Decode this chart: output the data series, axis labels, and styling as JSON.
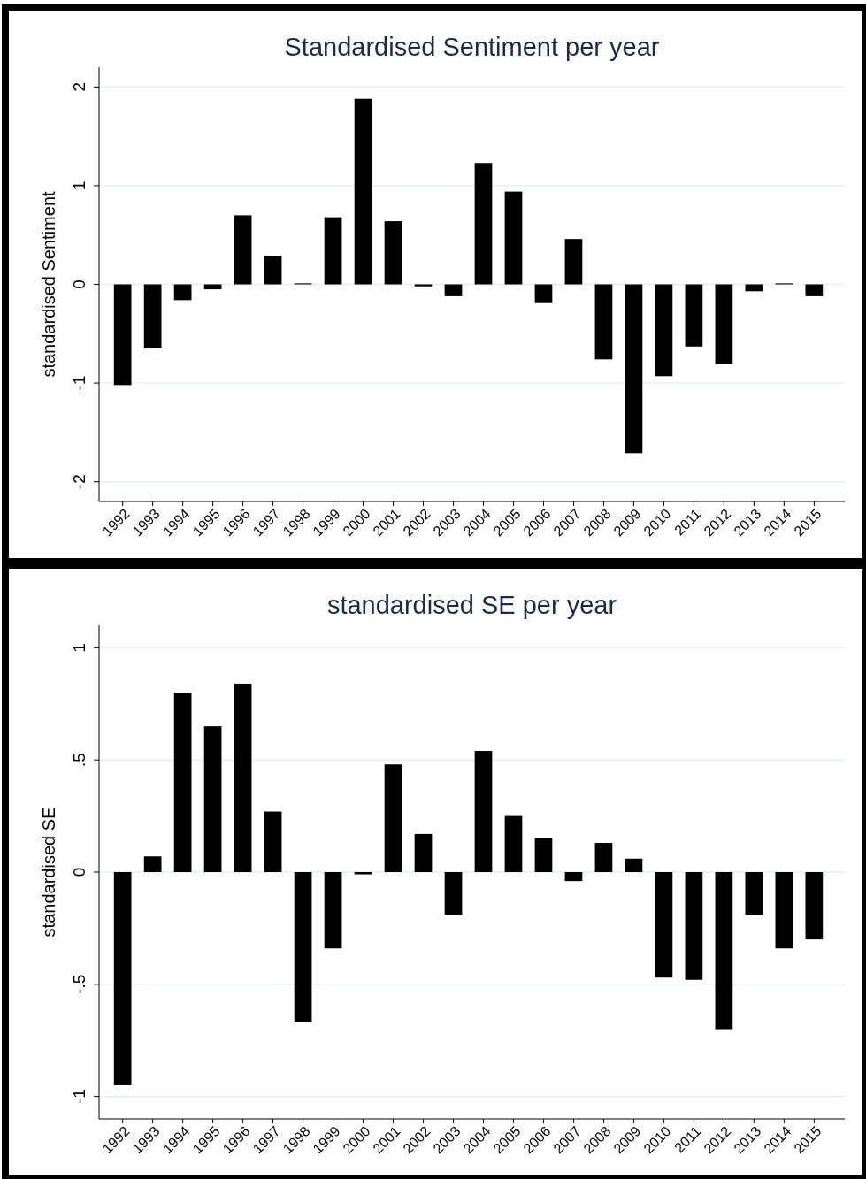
{
  "chart_data": [
    {
      "type": "bar",
      "title": "Standardised Sentiment per year",
      "ylabel": "standardised Sentiment",
      "categories": [
        "1992",
        "1993",
        "1994",
        "1995",
        "1996",
        "1997",
        "1998",
        "1999",
        "2000",
        "2001",
        "2002",
        "2003",
        "2004",
        "2005",
        "2006",
        "2007",
        "2008",
        "2009",
        "2010",
        "2011",
        "2012",
        "2013",
        "2014",
        "2015"
      ],
      "values": [
        -1.02,
        -0.65,
        -0.16,
        -0.05,
        0.7,
        0.29,
        0.01,
        0.68,
        1.88,
        0.64,
        -0.02,
        -0.12,
        1.23,
        0.94,
        -0.19,
        0.46,
        -0.76,
        -1.71,
        -0.93,
        -0.63,
        -0.81,
        -0.07,
        0.01,
        -0.12
      ],
      "color": "#000000",
      "ylim": [
        -2.2,
        2.2
      ],
      "yticks": [
        -2,
        -1,
        0,
        1,
        2
      ],
      "grid": "y"
    },
    {
      "type": "bar",
      "title": "standardised SE per year",
      "ylabel": "standardised SE",
      "categories": [
        "1992",
        "1993",
        "1994",
        "1995",
        "1996",
        "1997",
        "1998",
        "1999",
        "2000",
        "2001",
        "2002",
        "2003",
        "2004",
        "2005",
        "2006",
        "2007",
        "2008",
        "2009",
        "2010",
        "2011",
        "2012",
        "2013",
        "2014",
        "2015"
      ],
      "values": [
        -0.95,
        0.07,
        0.8,
        0.65,
        0.84,
        0.27,
        -0.67,
        -0.34,
        -0.01,
        0.48,
        0.17,
        -0.19,
        0.54,
        0.25,
        0.15,
        -0.04,
        0.13,
        0.06,
        -0.47,
        -0.48,
        -0.7,
        -0.19,
        -0.34,
        -0.3
      ],
      "color": "#000000",
      "ylim": [
        -1.1,
        1.1
      ],
      "yticks": [
        -1,
        {
          "value": -0.5,
          "label": "-.5"
        },
        0,
        {
          "value": 0.5,
          "label": ".5"
        },
        1
      ],
      "grid": "y"
    }
  ]
}
